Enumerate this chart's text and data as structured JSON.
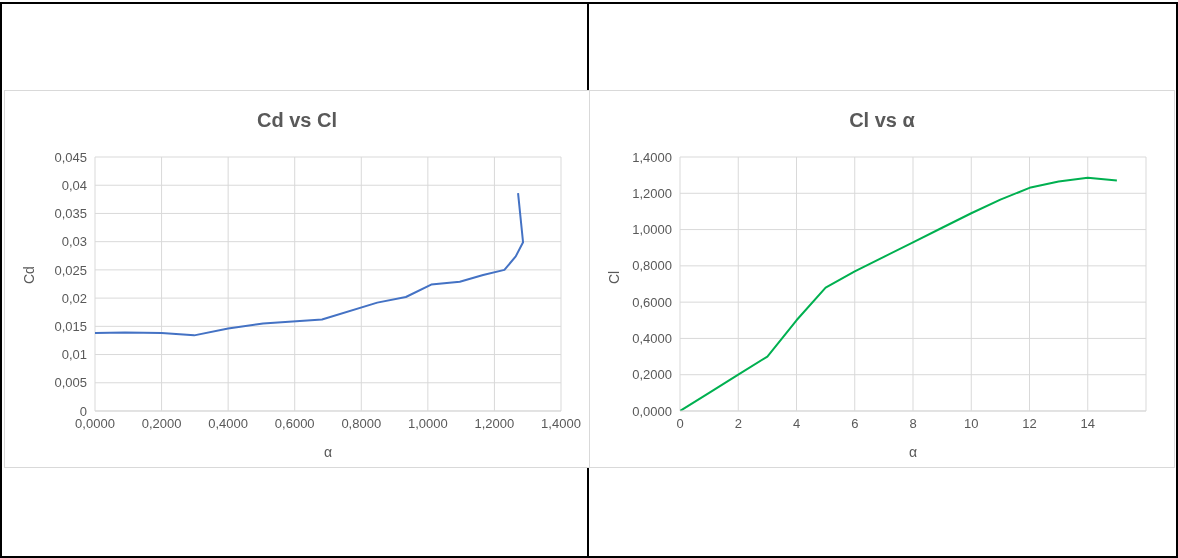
{
  "chart_data": [
    {
      "type": "line",
      "title": "Cd vs Cl",
      "xlabel": "α",
      "ylabel": "Cd",
      "x": [
        0,
        0.09,
        0.2,
        0.298,
        0.4,
        0.505,
        0.682,
        0.848,
        0.934,
        1.01,
        1.096,
        1.166,
        1.23,
        1.264,
        1.286,
        1.271
      ],
      "series": [
        {
          "color": "#4472c4",
          "values": [
            0.0138,
            0.0139,
            0.0138,
            0.0134,
            0.0146,
            0.0155,
            0.0162,
            0.0192,
            0.0202,
            0.0224,
            0.0229,
            0.0241,
            0.025,
            0.0274,
            0.0299,
            0.0386
          ]
        }
      ],
      "xlim": [
        0,
        1.4
      ],
      "xticks": [
        {
          "value": 0,
          "label": "0,0000"
        },
        {
          "value": 0.2,
          "label": "0,2000"
        },
        {
          "value": 0.4,
          "label": "0,4000"
        },
        {
          "value": 0.6,
          "label": "0,6000"
        },
        {
          "value": 0.8,
          "label": "0,8000"
        },
        {
          "value": 1,
          "label": "1,0000"
        },
        {
          "value": 1.2,
          "label": "1,2000"
        },
        {
          "value": 1.4,
          "label": "1,4000"
        }
      ],
      "ylim": [
        0,
        0.045
      ],
      "yticks": [
        0,
        {
          "value": 0.005,
          "label": "0,005"
        },
        {
          "value": 0.01,
          "label": "0,01"
        },
        {
          "value": 0.015,
          "label": "0,015"
        },
        {
          "value": 0.02,
          "label": "0,02"
        },
        {
          "value": 0.025,
          "label": "0,025"
        },
        {
          "value": 0.03,
          "label": "0,03"
        },
        {
          "value": 0.035,
          "label": "0,035"
        },
        {
          "value": 0.04,
          "label": "0,04"
        },
        {
          "value": 0.045,
          "label": "0,045"
        }
      ],
      "grid": true,
      "legend": false,
      "marker": "none",
      "line_style": "solid"
    },
    {
      "type": "line",
      "title": "Cl vs α",
      "xlabel": "α",
      "ylabel": "Cl",
      "x": [
        0,
        1,
        2,
        3,
        4,
        5,
        6,
        7,
        8,
        9,
        10,
        11,
        12,
        13,
        14,
        15
      ],
      "series": [
        {
          "color": "#00b050",
          "values": [
            0,
            0.1,
            0.2,
            0.3,
            0.5,
            0.68,
            0.77,
            0.85,
            0.93,
            1.01,
            1.09,
            1.165,
            1.23,
            1.265,
            1.285,
            1.27
          ]
        }
      ],
      "xlim": [
        0,
        16
      ],
      "xticks": [
        0,
        2,
        4,
        6,
        8,
        10,
        12,
        14
      ],
      "ylim": [
        0,
        1.4
      ],
      "yticks": [
        {
          "value": 0,
          "label": "0,0000"
        },
        {
          "value": 0.2,
          "label": "0,2000"
        },
        {
          "value": 0.4,
          "label": "0,4000"
        },
        {
          "value": 0.6,
          "label": "0,6000"
        },
        {
          "value": 0.8,
          "label": "0,8000"
        },
        {
          "value": 1,
          "label": "1,0000"
        },
        {
          "value": 1.2,
          "label": "1,2000"
        },
        {
          "value": 1.4,
          "label": "1,4000"
        }
      ],
      "grid": true,
      "legend": false,
      "marker": "none",
      "line_style": "solid"
    }
  ]
}
